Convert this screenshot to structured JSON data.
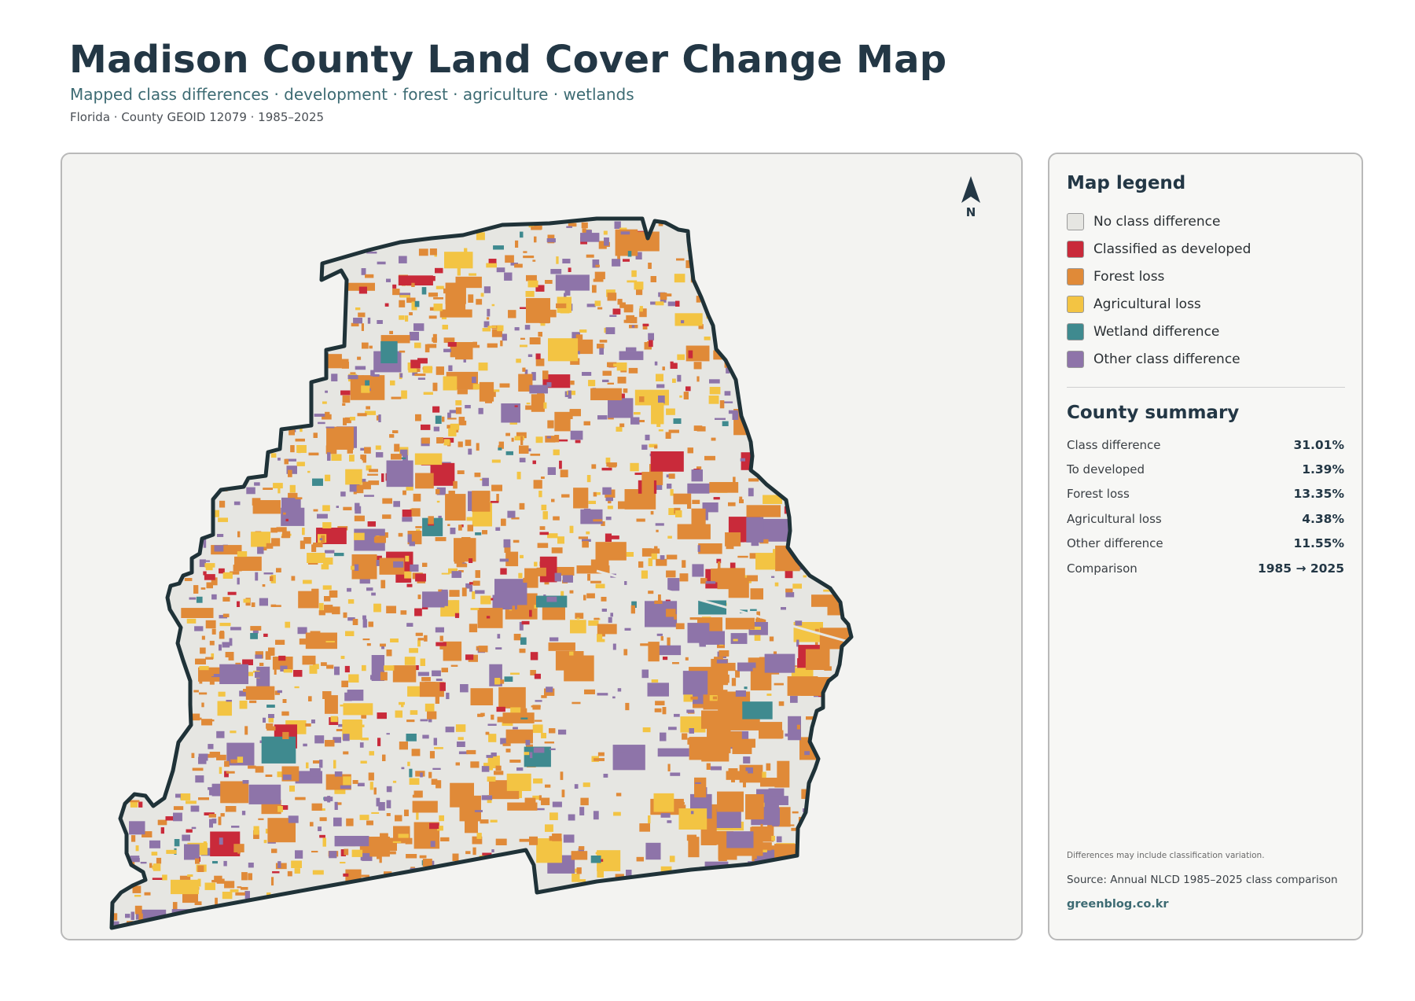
{
  "header": {
    "title": "Madison County Land Cover Change Map",
    "subtitle": "Mapped class differences · development · forest · agriculture · wetlands",
    "meta": "Florida · County GEOID 12079 · 1985–2025"
  },
  "map": {
    "north_label": "N",
    "colors": {
      "no_change": "#e6e6e2",
      "developed": "#c92a3a",
      "forest_loss": "#e08a38",
      "agricultural_loss": "#f3c443",
      "wetland": "#3f8a8f",
      "other": "#8e74a9",
      "outline": "#1f3238"
    }
  },
  "legend": {
    "heading": "Map legend",
    "items": [
      {
        "label": "No class difference",
        "color": "#e6e6e2"
      },
      {
        "label": "Classified as developed",
        "color": "#c92a3a"
      },
      {
        "label": "Forest loss",
        "color": "#e08a38"
      },
      {
        "label": "Agricultural loss",
        "color": "#f3c443"
      },
      {
        "label": "Wetland difference",
        "color": "#3f8a8f"
      },
      {
        "label": "Other class difference",
        "color": "#8e74a9"
      }
    ]
  },
  "summary": {
    "heading": "County summary",
    "rows": [
      {
        "label": "Class difference",
        "value": "31.01%"
      },
      {
        "label": "To developed",
        "value": "1.39%"
      },
      {
        "label": "Forest loss",
        "value": "13.35%"
      },
      {
        "label": "Agricultural loss",
        "value": "4.38%"
      },
      {
        "label": "Other difference",
        "value": "11.55%"
      },
      {
        "label": "Comparison",
        "value": "1985 → 2025"
      }
    ]
  },
  "footer": {
    "note": "Differences may include classification variation.",
    "source": "Source: Annual NLCD 1985–2025 class comparison",
    "site": "greenblog.co.kr"
  }
}
